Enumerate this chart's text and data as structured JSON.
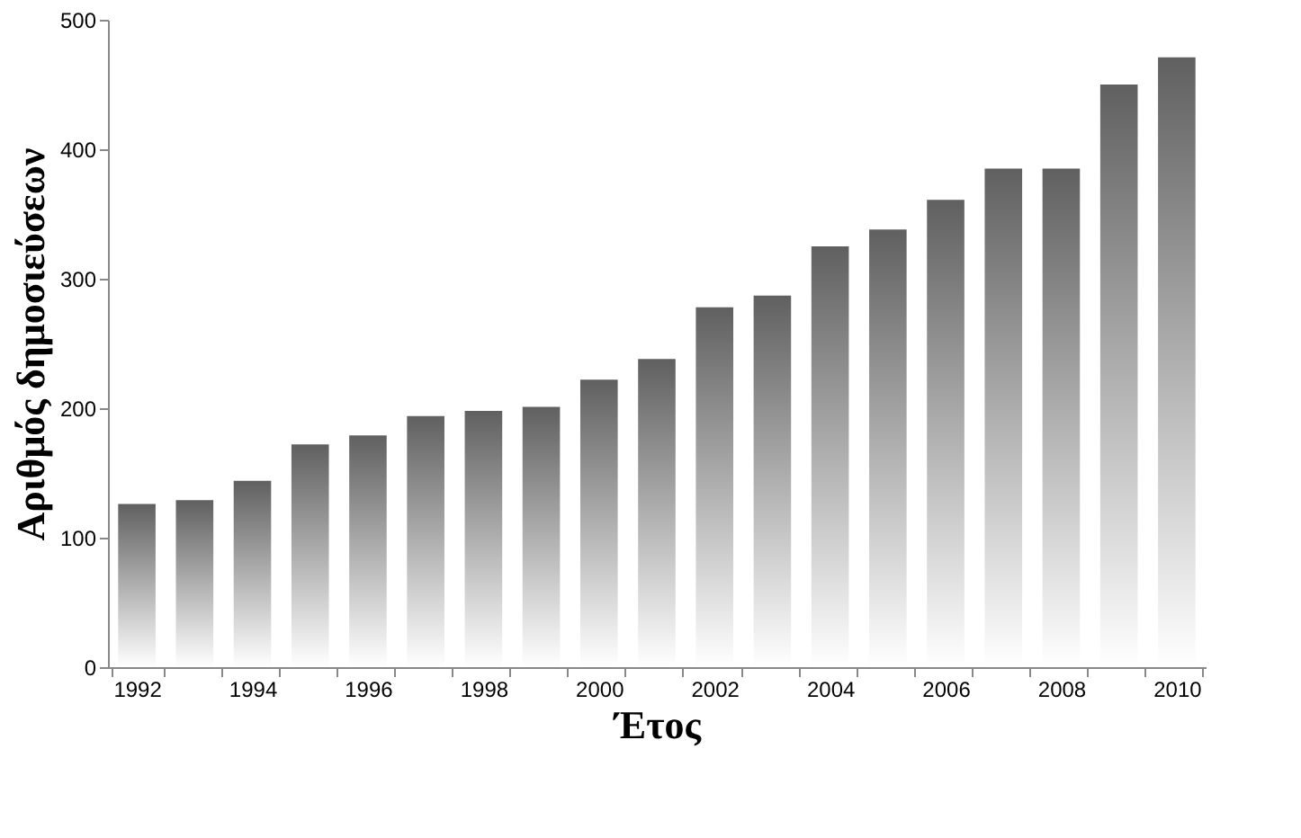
{
  "chart_data": {
    "type": "bar",
    "xlabel": "Έτος",
    "ylabel": "Αριθμός δημοσιεύσεων",
    "categories": [
      "1992",
      null,
      "1994",
      null,
      "1996",
      null,
      "1998",
      null,
      "2000",
      null,
      "2002",
      null,
      "2004",
      null,
      "2006",
      null,
      "2008",
      null,
      "2010"
    ],
    "values": [
      126,
      129,
      144,
      172,
      179,
      194,
      198,
      201,
      222,
      238,
      278,
      287,
      325,
      338,
      361,
      385,
      385,
      450,
      471
    ],
    "color": "#606060",
    "ylim": [
      0,
      500
    ],
    "yticks": [
      0,
      100,
      200,
      300,
      400,
      500
    ],
    "grid": false
  }
}
